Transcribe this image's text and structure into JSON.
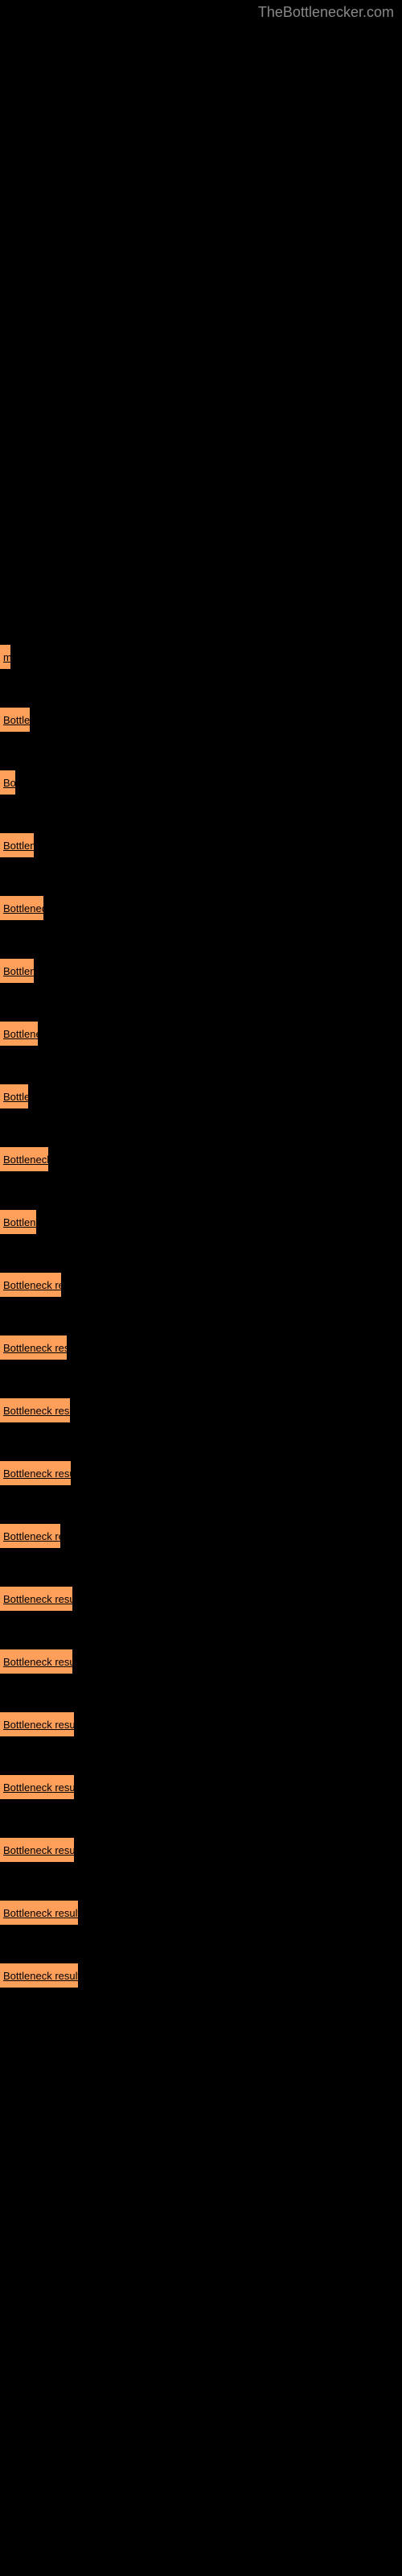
{
  "watermark": "TheBottlenecker.com",
  "link_section": {
    "rows": [
      {
        "label": "m",
        "width": 13
      },
      {
        "label": "Bottler",
        "width": 37
      },
      {
        "label": "Bo",
        "width": 19
      },
      {
        "label": "Bottlene",
        "width": 42
      },
      {
        "label": "Bottleneck",
        "width": 54
      },
      {
        "label": "Bottlene",
        "width": 42
      },
      {
        "label": "Bottleneck",
        "width": 47
      },
      {
        "label": "Bottle",
        "width": 35
      },
      {
        "label": "Bottleneck r",
        "width": 60
      },
      {
        "label": "Bottlener",
        "width": 45
      },
      {
        "label": "Bottleneck resu",
        "width": 76
      },
      {
        "label": "Bottleneck result",
        "width": 83
      },
      {
        "label": "Bottleneck result",
        "width": 87
      },
      {
        "label": "Bottleneck result",
        "width": 88
      },
      {
        "label": "Bottleneck res",
        "width": 75
      },
      {
        "label": "Bottleneck result",
        "width": 90
      },
      {
        "label": "Bottleneck result",
        "width": 90
      },
      {
        "label": "Bottleneck result",
        "width": 92
      },
      {
        "label": "Bottleneck result",
        "width": 92
      },
      {
        "label": "Bottleneck result",
        "width": 92
      },
      {
        "label": "Bottleneck result",
        "width": 97
      },
      {
        "label": "Bottleneck result",
        "width": 97
      }
    ]
  },
  "colors": {
    "background": "#000000",
    "orange": "#ff9f5a",
    "watermark": "#888888",
    "text": "#000000"
  }
}
